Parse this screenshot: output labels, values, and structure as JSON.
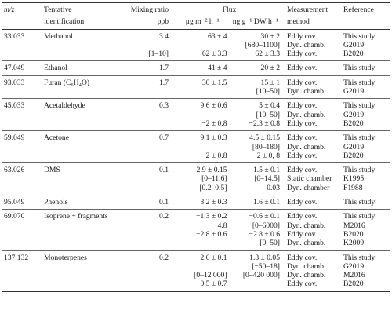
{
  "headers": {
    "mz": "m/z",
    "tentative": "Tentative",
    "identification": "identification",
    "mixing": "Mixing ratio",
    "ppb": "ppb",
    "flux": "Flux",
    "flux_unit1": "μg m⁻² h⁻¹",
    "flux_unit2": "ng g⁻¹ DW h⁻¹",
    "measurement": "Measurement",
    "method": "method",
    "reference": "Reference"
  },
  "rows": [
    {
      "mz": "33.033",
      "name": "Methanol",
      "mix": "3.4",
      "f1": "63 ± 4",
      "f2": "30 ± 2",
      "method": "Eddy cov.",
      "ref": "This study"
    },
    {
      "mz": "",
      "name": "",
      "mix": "",
      "f1": "",
      "f2": "[680–1100]",
      "method": "Dyn. chamb.",
      "ref": "G2019"
    },
    {
      "mz": "",
      "name": "",
      "mix": "[1–10]",
      "f1": "62 ± 3.3",
      "f2": "62 ± 3.3",
      "method": "Eddy cov.",
      "ref": "B2020"
    },
    {
      "mz": "47.049",
      "name": "Ethanol",
      "mix": "1.7",
      "f1": "41 ± 4",
      "f2": "20 ± 2",
      "method": "Eddy cov.",
      "ref": "This study"
    },
    {
      "mz": "93.033",
      "name": "Furan (C₆H₄O)",
      "mix": "1.7",
      "f1": "30 ± 1.5",
      "f2": "15 ± 1",
      "method": "Eddy cov.",
      "ref": "This study"
    },
    {
      "mz": "",
      "name": "",
      "mix": "",
      "f1": "",
      "f2": "[10–50]",
      "method": "Dyn. chamb.",
      "ref": "G2019"
    },
    {
      "mz": "45.033",
      "name": "Acetaldehyde",
      "mix": "0.3",
      "f1": "9.6 ± 0.6",
      "f2": "5 ± 0.4",
      "method": "Eddy cov.",
      "ref": "This study"
    },
    {
      "mz": "",
      "name": "",
      "mix": "",
      "f1": "",
      "f2": "[10–50]",
      "method": "Dyn. chamb.",
      "ref": "G2019"
    },
    {
      "mz": "",
      "name": "",
      "mix": "",
      "f1": "−2 ± 0.8",
      "f2": "−2.3 ± 0.8",
      "method": "Eddy cov.",
      "ref": "B2020"
    },
    {
      "mz": "59.049",
      "name": "Acetone",
      "mix": "0.7",
      "f1": "9.1 ± 0.3",
      "f2": "4.5 ± 0.15",
      "method": "Eddy cov.",
      "ref": "This study"
    },
    {
      "mz": "",
      "name": "",
      "mix": "",
      "f1": "",
      "f2": "[80–180]",
      "method": "Dyn. chamb.",
      "ref": "G2019"
    },
    {
      "mz": "",
      "name": "",
      "mix": "",
      "f1": "−2 ± 0.8",
      "f2": "2 ± 0, 8",
      "method": "Eddy cov.",
      "ref": "B2020"
    },
    {
      "mz": "63.026",
      "name": "DMS",
      "mix": "0.1",
      "f1": "2.9 ± 0.15",
      "f2": "1.5 ± 0.1",
      "method": "Eddy cov.",
      "ref": "This study"
    },
    {
      "mz": "",
      "name": "",
      "mix": "",
      "f1": "[0–11.6]",
      "f2": "[0–14.5]",
      "method": "Static chamber",
      "ref": "K1995"
    },
    {
      "mz": "",
      "name": "",
      "mix": "",
      "f1": "[0.2–0.5]",
      "f2": "0.03",
      "method": "Dyn. chamber",
      "ref": "F1988"
    },
    {
      "mz": "95.049",
      "name": "Phenols",
      "mix": "0.1",
      "f1": "3.2 ± 0.3",
      "f2": "1.6 ± 0.1",
      "method": "Eddy cov.",
      "ref": "This study"
    },
    {
      "mz": "69.070",
      "name": "Isoprene + fragments",
      "mix": "0.2",
      "f1": "−1.3 ± 0.2",
      "f2": "−0.6 ± 0.1",
      "method": "Eddy cov.",
      "ref": "This study"
    },
    {
      "mz": "",
      "name": "",
      "mix": "",
      "f1": "4.8",
      "f2": "[0–6000]",
      "method": "Dyn. chamb.",
      "ref": "M2016"
    },
    {
      "mz": "",
      "name": "",
      "mix": "",
      "f1": "−2.8 ± 0.6",
      "f2": "−2.8 ± 0.6",
      "method": "Eddy cov.",
      "ref": "B2020"
    },
    {
      "mz": "",
      "name": "",
      "mix": "",
      "f1": "",
      "f2": "[0–50]",
      "method": "Dyn. chamb.",
      "ref": "K2009"
    },
    {
      "mz": "137.132",
      "name": "Monoterpenes",
      "mix": "0.2",
      "f1": "−2.6 ± 0.1",
      "f2": "−1.3 ± 0.05",
      "method": "Eddy cov.",
      "ref": "This study"
    },
    {
      "mz": "",
      "name": "",
      "mix": "",
      "f1": "",
      "f2": "[−50–18]",
      "method": "Dyn. chamb.",
      "ref": "G2019"
    },
    {
      "mz": "",
      "name": "",
      "mix": "",
      "f1": "[0–12 000]",
      "f2": "[0–420 000]",
      "method": "Dyn. chamb.",
      "ref": "M2016"
    },
    {
      "mz": "",
      "name": "",
      "mix": "",
      "f1": "0.5 ± 0.7",
      "f2": "",
      "method": "Eddy cov.",
      "ref": "B2020"
    }
  ]
}
